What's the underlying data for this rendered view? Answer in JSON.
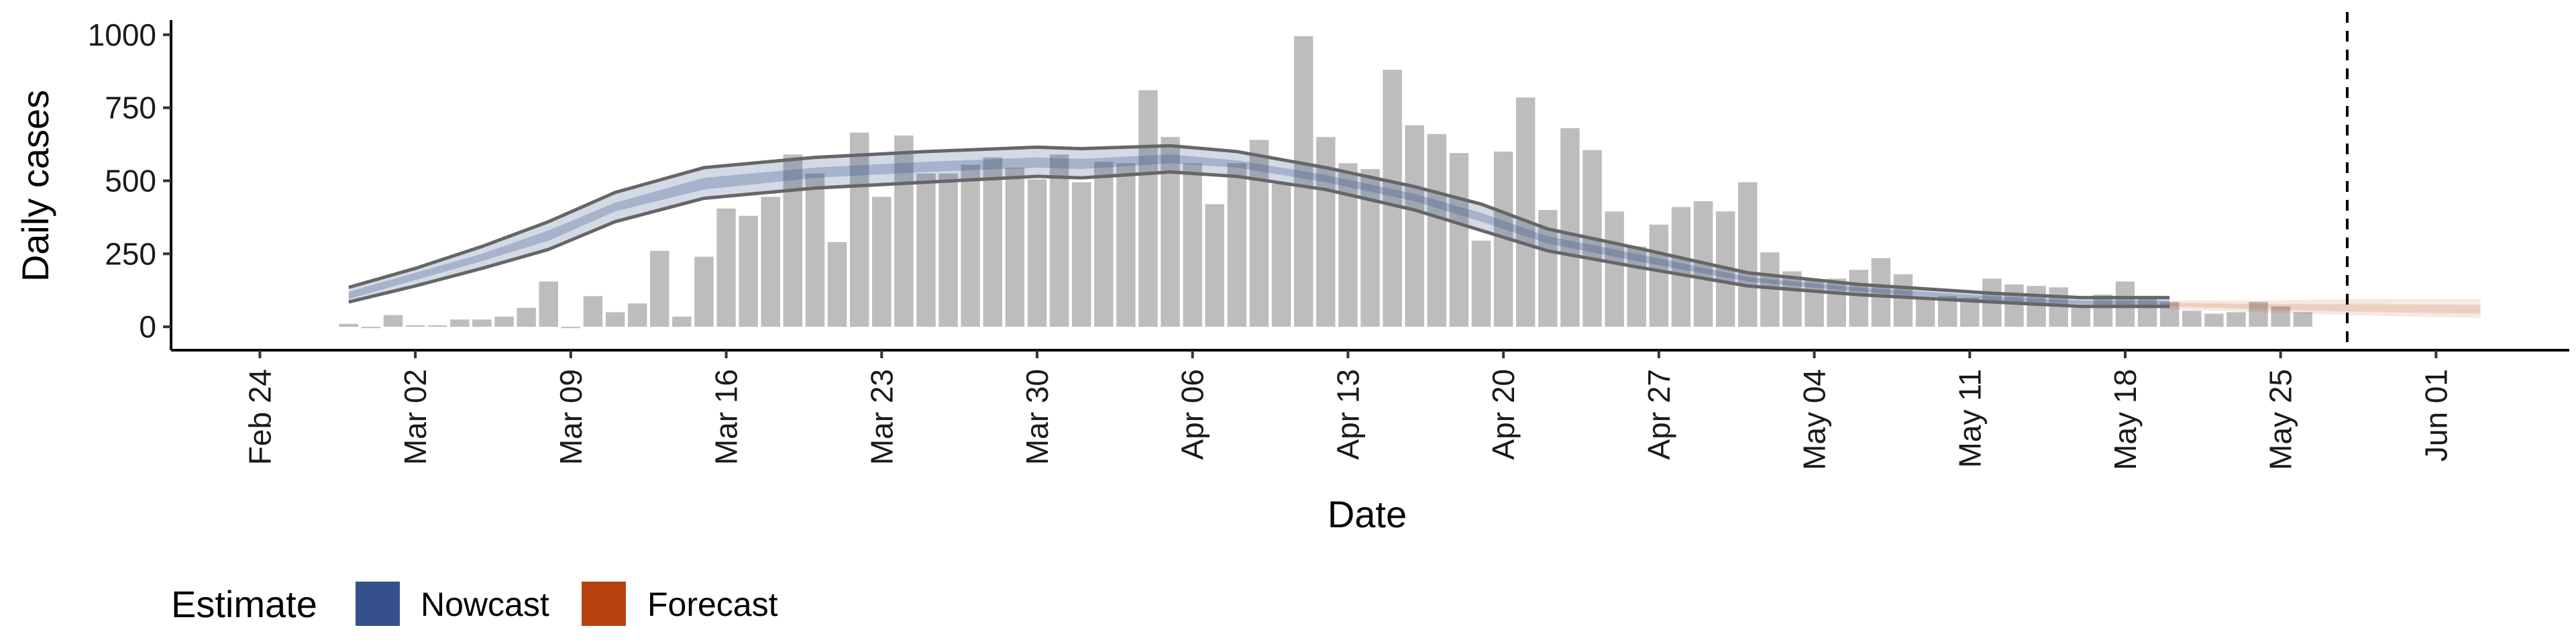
{
  "chart_data": {
    "type": "bar",
    "xlabel": "Date",
    "ylabel": "Daily cases",
    "ylim": [
      -80,
      1050
    ],
    "xlim": [
      "2020-02-20",
      "2020-06-07"
    ],
    "y_ticks": [
      0,
      250,
      500,
      750,
      1000
    ],
    "x_ticks": [
      {
        "date": "2020-02-24",
        "label": "Feb 24"
      },
      {
        "date": "2020-03-02",
        "label": "Mar 02"
      },
      {
        "date": "2020-03-09",
        "label": "Mar 09"
      },
      {
        "date": "2020-03-16",
        "label": "Mar 16"
      },
      {
        "date": "2020-03-23",
        "label": "Mar 23"
      },
      {
        "date": "2020-03-30",
        "label": "Mar 30"
      },
      {
        "date": "2020-04-06",
        "label": "Apr 06"
      },
      {
        "date": "2020-04-13",
        "label": "Apr 13"
      },
      {
        "date": "2020-04-20",
        "label": "Apr 20"
      },
      {
        "date": "2020-04-27",
        "label": "Apr 27"
      },
      {
        "date": "2020-05-04",
        "label": "May 04"
      },
      {
        "date": "2020-05-11",
        "label": "May 11"
      },
      {
        "date": "2020-05-18",
        "label": "May 18"
      },
      {
        "date": "2020-05-25",
        "label": "May 25"
      },
      {
        "date": "2020-06-01",
        "label": "Jun 01"
      }
    ],
    "bars": {
      "start_date": "2020-02-28",
      "color": "#bdbdbd",
      "values": [
        10,
        0,
        40,
        5,
        5,
        25,
        25,
        35,
        65,
        155,
        0,
        105,
        50,
        80,
        260,
        35,
        240,
        405,
        380,
        445,
        590,
        525,
        290,
        665,
        445,
        655,
        525,
        525,
        555,
        580,
        545,
        505,
        590,
        495,
        565,
        560,
        810,
        650,
        560,
        420,
        560,
        640,
        490,
        995,
        650,
        560,
        540,
        880,
        690,
        660,
        595,
        295,
        600,
        785,
        400,
        680,
        605,
        395,
        275,
        350,
        410,
        430,
        395,
        495,
        255,
        190,
        160,
        165,
        195,
        235,
        180,
        95,
        105,
        100,
        165,
        145,
        140,
        135,
        65,
        110,
        155,
        105,
        85,
        55,
        45,
        50,
        85,
        70,
        50
      ]
    },
    "vline": {
      "date": "2020-05-28",
      "style": "dashed"
    },
    "series": [
      {
        "name": "Nowcast",
        "color": "#35508a",
        "dates": [
          "2020-02-28",
          "2020-03-02",
          "2020-03-05",
          "2020-03-08",
          "2020-03-11",
          "2020-03-15",
          "2020-03-20",
          "2020-03-25",
          "2020-03-30",
          "2020-04-01",
          "2020-04-05",
          "2020-04-08",
          "2020-04-12",
          "2020-04-16",
          "2020-04-19",
          "2020-04-22",
          "2020-04-26",
          "2020-05-01",
          "2020-05-06",
          "2020-05-12",
          "2020-05-16",
          "2020-05-20"
        ],
        "lower90": [
          85,
          140,
          200,
          265,
          360,
          440,
          475,
          495,
          515,
          510,
          530,
          515,
          470,
          400,
          330,
          260,
          205,
          140,
          110,
          85,
          70,
          70
        ],
        "upper90": [
          135,
          200,
          275,
          360,
          460,
          545,
          580,
          600,
          615,
          610,
          620,
          600,
          545,
          480,
          420,
          335,
          270,
          185,
          145,
          115,
          100,
          100
        ],
        "lower50": [
          95,
          160,
          225,
          295,
          395,
          470,
          510,
          530,
          545,
          540,
          560,
          545,
          495,
          430,
          360,
          285,
          225,
          155,
          120,
          90,
          77,
          75
        ],
        "upper50": [
          120,
          185,
          250,
          330,
          425,
          510,
          545,
          565,
          580,
          575,
          590,
          570,
          520,
          455,
          390,
          310,
          250,
          170,
          135,
          105,
          90,
          90
        ]
      },
      {
        "name": "Forecast",
        "color": "#b7410e",
        "dates": [
          "2020-05-20",
          "2020-05-24",
          "2020-05-28",
          "2020-06-03"
        ],
        "lower90": [
          60,
          50,
          40,
          30
        ],
        "upper90": [
          90,
          90,
          95,
          95
        ],
        "lower50": [
          70,
          60,
          52,
          45
        ],
        "upper50": [
          82,
          78,
          78,
          75
        ]
      }
    ],
    "legend": {
      "title": "Estimate",
      "position": "bottom-left",
      "items": [
        {
          "label": "Nowcast",
          "color": "#35508a"
        },
        {
          "label": "Forecast",
          "color": "#b7410e"
        }
      ]
    }
  }
}
